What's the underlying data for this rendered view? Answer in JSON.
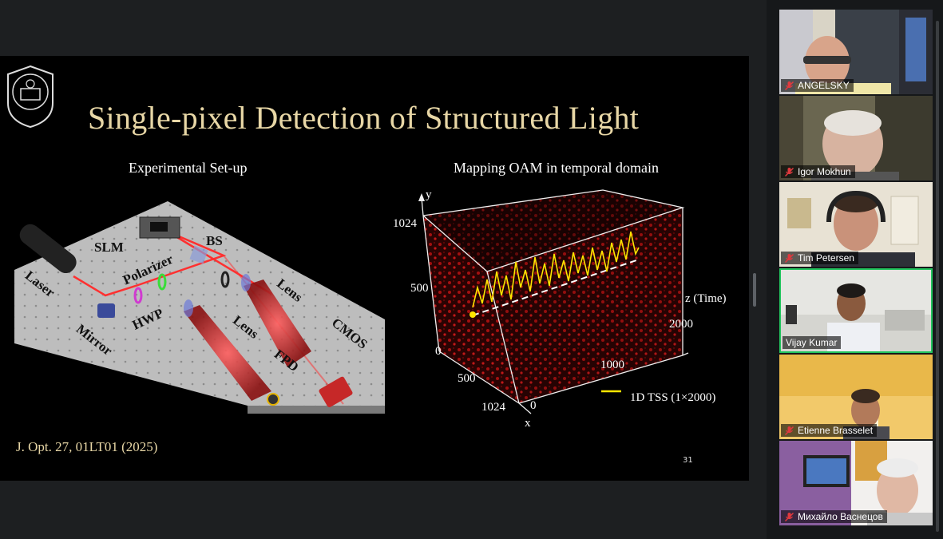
{
  "slide": {
    "title": "Single-pixel Detection of Structured Light",
    "left_subtitle": "Experimental Set-up",
    "right_subtitle": "Mapping OAM in temporal domain",
    "citation": "J. Opt. 27, 01LT01 (2025)",
    "page_number": "31",
    "setup_labels": {
      "laser": "Laser",
      "slm": "SLM",
      "bs": "BS",
      "polarizer": "Polarizer",
      "lens1": "Lens",
      "lens2": "Lens",
      "hwp": "HWP",
      "mirror": "Mirror",
      "cmos": "CMOS",
      "fpd": "FPD"
    },
    "plot_labels": {
      "y_axis": "y",
      "x_axis": "x",
      "z_axis": "z (Time)",
      "y_1024": "1024",
      "y_500": "500",
      "y_0": "0",
      "x_500": "500",
      "x_1024": "1024",
      "z_0": "0",
      "z_1000": "1000",
      "z_2000": "2000",
      "legend": "1D TSS (1×2000)"
    }
  },
  "participants": [
    {
      "name": "ANGELSKY",
      "muted": true,
      "active": false
    },
    {
      "name": "Igor Mokhun",
      "muted": true,
      "active": false
    },
    {
      "name": "Tim Petersen",
      "muted": true,
      "active": false
    },
    {
      "name": "Vijay Kumar",
      "muted": false,
      "active": true
    },
    {
      "name": "Etienne Brasselet",
      "muted": true,
      "active": false
    },
    {
      "name": "Михайло Васнецов",
      "muted": true,
      "active": false
    }
  ],
  "colors": {
    "accent_active": "#22c55e",
    "title_gold": "#e8d7a6",
    "mute_red": "#e0393e"
  }
}
